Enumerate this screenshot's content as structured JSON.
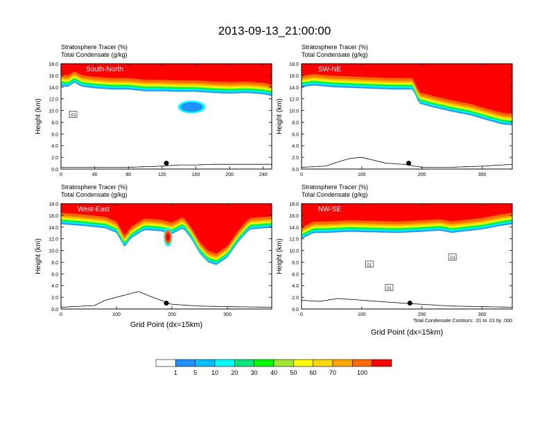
{
  "figure_title": "2013-09-13_21:00:00",
  "chart_data": [
    {
      "type": "heatmap",
      "panel": "South-North",
      "line1": "Stratosphere Tracer   (%)",
      "line2": "Total Condensate   (g/kg)",
      "ylabel": "Height (km)",
      "xlabel": "",
      "xlim": [
        0,
        250
      ],
      "ylim": [
        0,
        18
      ],
      "xticks": [
        "0",
        "40",
        "80",
        "120",
        "160",
        "200",
        "240"
      ],
      "yticks": [
        "0.0",
        "2.0",
        "4.0",
        "6.0",
        "8.0",
        "10.0",
        "12.0",
        "14.0",
        "16.0",
        "18.0"
      ],
      "tracer_boundary": [
        [
          0,
          14.2
        ],
        [
          8,
          14.0
        ],
        [
          16,
          14.8
        ],
        [
          24,
          14.1
        ],
        [
          40,
          13.8
        ],
        [
          60,
          13.6
        ],
        [
          80,
          13.6
        ],
        [
          100,
          13.3
        ],
        [
          120,
          13.3
        ],
        [
          140,
          13.2
        ],
        [
          160,
          13.2
        ],
        [
          180,
          13.0
        ],
        [
          200,
          12.9
        ],
        [
          220,
          13.0
        ],
        [
          240,
          12.8
        ],
        [
          250,
          12.5
        ]
      ],
      "tracer_island": {
        "x": 155,
        "y": 10.6,
        "rx": 13,
        "ry": 0.8
      },
      "terrain": [
        [
          0,
          0.3
        ],
        [
          30,
          0.3
        ],
        [
          50,
          0.3
        ],
        [
          80,
          0.3
        ],
        [
          100,
          0.4
        ],
        [
          120,
          0.5
        ],
        [
          140,
          0.7
        ],
        [
          160,
          0.7
        ],
        [
          180,
          0.8
        ],
        [
          200,
          0.8
        ],
        [
          220,
          0.8
        ],
        [
          240,
          0.8
        ],
        [
          250,
          0.8
        ]
      ],
      "marker": {
        "x": 125,
        "y": 1.0
      },
      "contour_labels": [
        {
          "text": ".01",
          "x": 14,
          "y": 9.3
        }
      ]
    },
    {
      "type": "heatmap",
      "panel": "SW-NE",
      "line1": "Stratosphere Tracer   (%)",
      "line2": "Total Condensate   (g/kg)",
      "ylabel": "Height (km)",
      "xlabel": "",
      "xlim": [
        0,
        350
      ],
      "ylim": [
        0,
        18
      ],
      "xticks": [
        "0",
        "100",
        "200",
        "300"
      ],
      "yticks": [
        "0.0",
        "2.0",
        "4.0",
        "6.0",
        "8.0",
        "10.0",
        "12.0",
        "14.0",
        "16.0",
        "18.0"
      ],
      "tracer_boundary": [
        [
          0,
          14.0
        ],
        [
          20,
          14.3
        ],
        [
          50,
          14.0
        ],
        [
          100,
          13.8
        ],
        [
          150,
          13.6
        ],
        [
          185,
          13.6
        ],
        [
          195,
          11.2
        ],
        [
          220,
          10.5
        ],
        [
          250,
          9.8
        ],
        [
          280,
          9.2
        ],
        [
          310,
          8.3
        ],
        [
          335,
          7.6
        ],
        [
          350,
          7.5
        ]
      ],
      "terrain": [
        [
          0,
          0.3
        ],
        [
          40,
          0.5
        ],
        [
          60,
          1.2
        ],
        [
          80,
          1.8
        ],
        [
          100,
          2.0
        ],
        [
          120,
          1.5
        ],
        [
          140,
          1.0
        ],
        [
          170,
          0.8
        ],
        [
          200,
          0.3
        ],
        [
          250,
          0.3
        ],
        [
          300,
          0.5
        ],
        [
          350,
          0.8
        ]
      ],
      "marker": {
        "x": 178,
        "y": 1.0
      },
      "contour_labels": []
    },
    {
      "type": "heatmap",
      "panel": "West-East",
      "line1": "Stratosphere Tracer   (%)",
      "line2": "Total Condensate   (g/kg)",
      "ylabel": "Height (km)",
      "xlabel": "Grid Point (dx=15km)",
      "xlim": [
        0,
        380
      ],
      "ylim": [
        0,
        18
      ],
      "xticks": [
        "0",
        "100",
        "200",
        "300"
      ],
      "yticks": [
        "0.0",
        "2.0",
        "4.0",
        "6.0",
        "8.0",
        "10.0",
        "12.0",
        "14.0",
        "16.0",
        "18.0"
      ],
      "tracer_boundary": [
        [
          0,
          14.5
        ],
        [
          40,
          14.2
        ],
        [
          80,
          13.8
        ],
        [
          100,
          13.0
        ],
        [
          115,
          10.5
        ],
        [
          125,
          12.0
        ],
        [
          150,
          13.5
        ],
        [
          180,
          13.3
        ],
        [
          200,
          12.8
        ],
        [
          220,
          13.8
        ],
        [
          235,
          12.0
        ],
        [
          250,
          9.5
        ],
        [
          265,
          8.0
        ],
        [
          280,
          7.5
        ],
        [
          300,
          8.8
        ],
        [
          320,
          11.5
        ],
        [
          340,
          13.6
        ],
        [
          380,
          13.9
        ]
      ],
      "tracer_island": {
        "x": 193,
        "y": 12.3,
        "rx": 6,
        "ry": 1.2
      },
      "terrain": [
        [
          0,
          0.3
        ],
        [
          60,
          0.6
        ],
        [
          80,
          1.5
        ],
        [
          100,
          2.0
        ],
        [
          120,
          2.5
        ],
        [
          140,
          3.0
        ],
        [
          160,
          2.2
        ],
        [
          180,
          1.5
        ],
        [
          200,
          0.8
        ],
        [
          250,
          0.5
        ],
        [
          300,
          0.4
        ],
        [
          380,
          0.3
        ]
      ],
      "marker": {
        "x": 190,
        "y": 1.0
      },
      "contour_labels": []
    },
    {
      "type": "heatmap",
      "panel": "NW-SE",
      "line1": "Stratosphere Tracer   (%)",
      "line2": "Total Condensate   (g/kg)",
      "ylabel": "Height (km)",
      "xlabel": "Grid Point (dx=15km)",
      "xlim": [
        0,
        350
      ],
      "ylim": [
        0,
        18
      ],
      "xticks": [
        "0",
        "100",
        "200",
        "300"
      ],
      "yticks": [
        "0.0",
        "2.0",
        "4.0",
        "6.0",
        "8.0",
        "10.0",
        "12.0",
        "14.0",
        "16.0",
        "18.0"
      ],
      "tracer_boundary": [
        [
          0,
          12.0
        ],
        [
          20,
          13.0
        ],
        [
          40,
          13.0
        ],
        [
          80,
          13.2
        ],
        [
          120,
          13.1
        ],
        [
          160,
          13.0
        ],
        [
          200,
          13.2
        ],
        [
          230,
          13.4
        ],
        [
          250,
          13.0
        ],
        [
          265,
          13.2
        ],
        [
          300,
          13.6
        ],
        [
          330,
          14.2
        ],
        [
          350,
          14.5
        ]
      ],
      "terrain": [
        [
          0,
          1.5
        ],
        [
          30,
          1.3
        ],
        [
          60,
          1.8
        ],
        [
          100,
          1.5
        ],
        [
          140,
          1.2
        ],
        [
          170,
          1.0
        ],
        [
          200,
          0.8
        ],
        [
          250,
          0.5
        ],
        [
          300,
          0.4
        ],
        [
          350,
          0.3
        ]
      ],
      "marker": {
        "x": 180,
        "y": 1.0
      },
      "contour_labels": [
        {
          "text": "01",
          "x": 112,
          "y": 7.6
        },
        {
          "text": "01",
          "x": 145,
          "y": 3.6
        },
        {
          "text": ".01",
          "x": 250,
          "y": 8.8
        }
      ],
      "footnote": "Total Condensate Contours: .01 to .01 by .000"
    }
  ],
  "colorbar": {
    "labels": [
      "1",
      "5",
      "10",
      "20",
      "30",
      "40",
      "50",
      "60",
      "70",
      "100"
    ],
    "colors": [
      "#ffffff",
      "#1e90ff",
      "#00bfff",
      "#00ffff",
      "#00e87a",
      "#00ff00",
      "#a0e632",
      "#ffff00",
      "#ffd700",
      "#ffa500",
      "#ff6a00",
      "#ff0000"
    ]
  }
}
